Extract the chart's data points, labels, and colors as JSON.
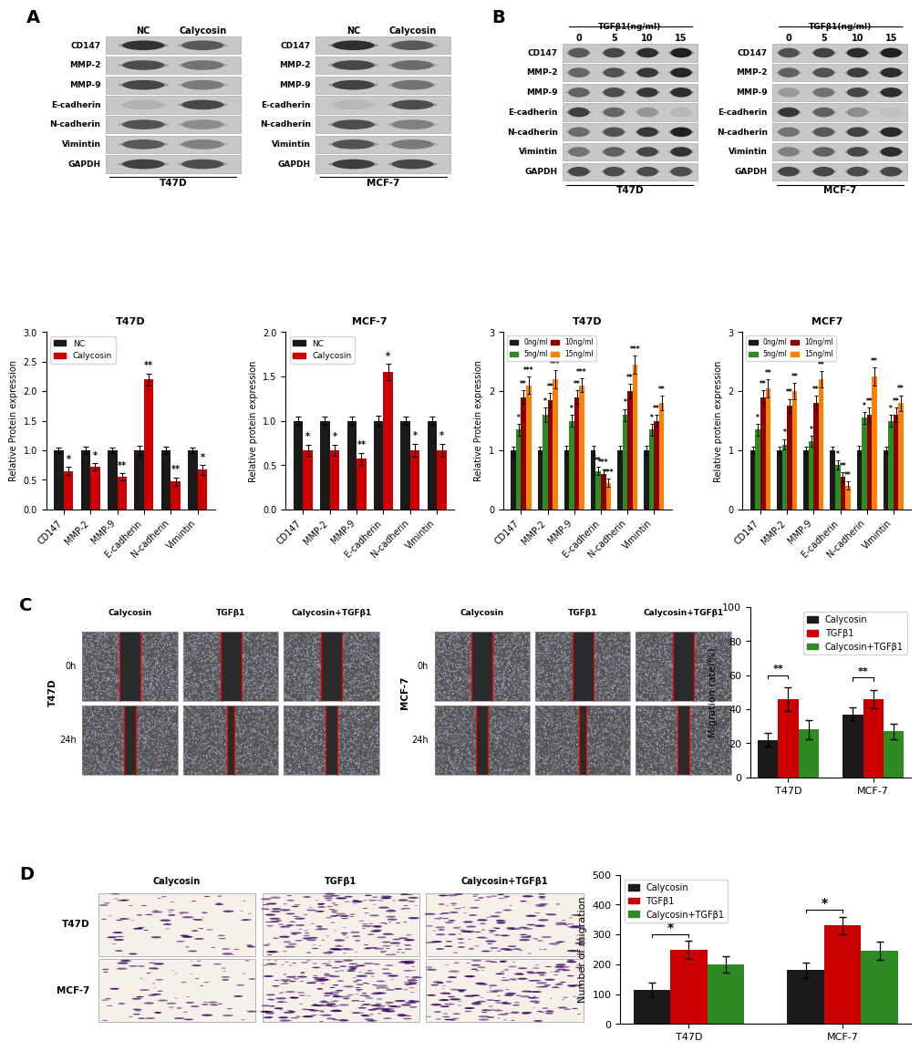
{
  "panel_A": {
    "title_t47d": "T47D",
    "title_mcf7": "MCF-7",
    "legend_labels": [
      "NC",
      "Calycosin"
    ],
    "legend_colors": [
      "#1a1a1a",
      "#cc0000"
    ],
    "categories": [
      "CD147",
      "MMP-2",
      "MMP-9",
      "E-cadherin",
      "N-cadherin",
      "Vimintin"
    ],
    "t47d_nc": [
      1.0,
      1.0,
      1.0,
      1.0,
      1.0,
      1.0
    ],
    "t47d_cal": [
      0.65,
      0.72,
      0.55,
      2.2,
      0.47,
      0.67
    ],
    "t47d_nc_err": [
      0.05,
      0.06,
      0.05,
      0.07,
      0.06,
      0.05
    ],
    "t47d_cal_err": [
      0.07,
      0.06,
      0.06,
      0.1,
      0.07,
      0.08
    ],
    "t47d_sig": [
      "*",
      "*",
      "**",
      "**",
      "**",
      "*"
    ],
    "mcf7_nc": [
      1.0,
      1.0,
      1.0,
      1.0,
      1.0,
      1.0
    ],
    "mcf7_cal": [
      0.67,
      0.67,
      0.57,
      1.55,
      0.67,
      0.67
    ],
    "mcf7_nc_err": [
      0.05,
      0.05,
      0.05,
      0.06,
      0.05,
      0.05
    ],
    "mcf7_cal_err": [
      0.06,
      0.06,
      0.07,
      0.09,
      0.07,
      0.07
    ],
    "mcf7_sig": [
      "*",
      "*",
      "**",
      "*",
      "*",
      "*"
    ],
    "ylim_t47d": [
      0.0,
      3.0
    ],
    "ylim_mcf7": [
      0.0,
      2.0
    ],
    "yticks_t47d": [
      0.0,
      0.5,
      1.0,
      1.5,
      2.0,
      2.5,
      3.0
    ],
    "yticks_mcf7": [
      0.0,
      0.5,
      1.0,
      1.5,
      2.0
    ],
    "ylabel": "Relative Protein expression",
    "ylabel_mcf7": "Relative protein expression"
  },
  "panel_B": {
    "title_t47d": "T47D",
    "title_mcf7": "MCF7",
    "legend_labels": [
      "0ng/ml",
      "5ng/ml",
      "10ng/ml",
      "15ng/ml"
    ],
    "legend_colors": [
      "#1a1a1a",
      "#2e8b22",
      "#8b0000",
      "#ff7f00"
    ],
    "categories": [
      "CD147",
      "MMP-2",
      "MMP-9",
      "E-cadherin",
      "N-cadherin",
      "Vimintin"
    ],
    "t47d_0": [
      1.0,
      1.0,
      1.0,
      1.0,
      1.0,
      1.0
    ],
    "t47d_5": [
      1.35,
      1.6,
      1.5,
      0.65,
      1.6,
      1.35
    ],
    "t47d_10": [
      1.9,
      1.85,
      1.9,
      0.6,
      2.0,
      1.5
    ],
    "t47d_15": [
      2.1,
      2.2,
      2.1,
      0.45,
      2.45,
      1.8
    ],
    "t47d_err_0": [
      0.06,
      0.06,
      0.07,
      0.07,
      0.07,
      0.07
    ],
    "t47d_err_5": [
      0.1,
      0.12,
      0.1,
      0.07,
      0.1,
      0.1
    ],
    "t47d_err_10": [
      0.12,
      0.12,
      0.12,
      0.08,
      0.12,
      0.1
    ],
    "t47d_err_15": [
      0.15,
      0.15,
      0.12,
      0.07,
      0.15,
      0.12
    ],
    "t47d_sig_5": [
      "*",
      "*",
      "*",
      "**",
      "*",
      "*"
    ],
    "t47d_sig_10": [
      "**",
      "**",
      "**",
      "***",
      "**",
      "**"
    ],
    "t47d_sig_15": [
      "***",
      "***",
      "***",
      "***",
      "***",
      "**"
    ],
    "mcf7_0": [
      1.0,
      1.0,
      1.0,
      1.0,
      1.0,
      1.0
    ],
    "mcf7_5": [
      1.35,
      1.1,
      1.15,
      0.75,
      1.55,
      1.5
    ],
    "mcf7_10": [
      1.9,
      1.75,
      1.8,
      0.55,
      1.6,
      1.6
    ],
    "mcf7_15": [
      2.05,
      2.0,
      2.2,
      0.4,
      2.25,
      1.8
    ],
    "mcf7_err_0": [
      0.06,
      0.06,
      0.06,
      0.06,
      0.07,
      0.06
    ],
    "mcf7_err_5": [
      0.1,
      0.09,
      0.09,
      0.08,
      0.1,
      0.1
    ],
    "mcf7_err_10": [
      0.12,
      0.12,
      0.12,
      0.08,
      0.12,
      0.12
    ],
    "mcf7_err_15": [
      0.15,
      0.14,
      0.14,
      0.07,
      0.15,
      0.13
    ],
    "mcf7_sig_5": [
      "*",
      "*",
      "*",
      "*",
      "*",
      "*"
    ],
    "mcf7_sig_10": [
      "**",
      "**",
      "**",
      "**",
      "**",
      "**"
    ],
    "mcf7_sig_15": [
      "**",
      "**",
      "**",
      "**",
      "**",
      "**"
    ],
    "ylim": [
      0.0,
      3.0
    ],
    "yticks": [
      0,
      1,
      2,
      3
    ],
    "ylabel": "Relative Protein expression",
    "ylabel_r": "Relative protein expression"
  },
  "panel_C": {
    "legend_labels": [
      "Calycosin",
      "TGFβ1",
      "Calycosin+TGFβ1"
    ],
    "legend_colors": [
      "#1a1a1a",
      "#cc0000",
      "#2e8b22"
    ],
    "categories": [
      "T47D",
      "MCF-7"
    ],
    "calycosin": [
      22.0,
      37.0
    ],
    "tgfb1": [
      46.0,
      46.0
    ],
    "combo": [
      28.0,
      27.0
    ],
    "calycosin_err": [
      4.0,
      4.0
    ],
    "tgfb1_err": [
      7.0,
      5.5
    ],
    "combo_err": [
      5.5,
      4.5
    ],
    "ylim": [
      0,
      100
    ],
    "yticks": [
      0,
      20,
      40,
      60,
      80,
      100
    ],
    "ylabel": "Migration rate(%)",
    "sig_t47d": "**",
    "sig_mcf7": "**"
  },
  "panel_D": {
    "legend_labels": [
      "Calycosin",
      "TGFβ1",
      "Calycosin+TGFβ1"
    ],
    "legend_colors": [
      "#1a1a1a",
      "#cc0000",
      "#2e8b22"
    ],
    "categories": [
      "T47D",
      "MCF-7"
    ],
    "calycosin": [
      115.0,
      180.0
    ],
    "tgfb1": [
      248.0,
      330.0
    ],
    "combo": [
      200.0,
      245.0
    ],
    "calycosin_err": [
      22.0,
      25.0
    ],
    "tgfb1_err": [
      30.0,
      30.0
    ],
    "combo_err": [
      28.0,
      30.0
    ],
    "ylim": [
      0,
      500
    ],
    "yticks": [
      0,
      100,
      200,
      300,
      400,
      500
    ],
    "ylabel": "Number of migration",
    "sig_t47d": "*",
    "sig_mcf7": "*"
  },
  "blot_row_labels": [
    "CD147",
    "MMP-2",
    "MMP-9",
    "E-cadherin",
    "N-cadherin",
    "Vimintin",
    "GAPDH"
  ],
  "colors": {
    "black": "#1a1a1a",
    "red": "#cc0000",
    "green": "#2e8b22",
    "orange": "#ff7f00",
    "darkred": "#8b0000"
  }
}
